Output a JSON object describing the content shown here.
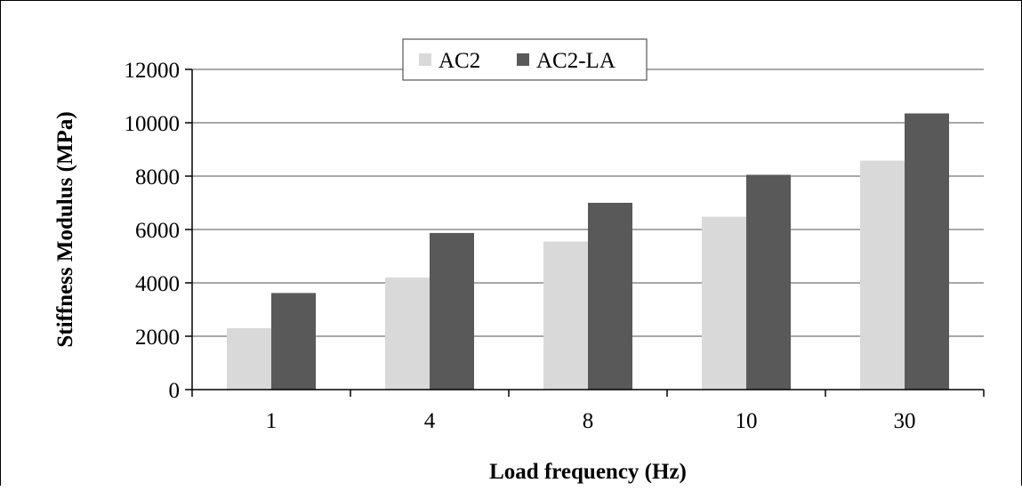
{
  "chart_data": {
    "type": "bar",
    "title": "",
    "xlabel": "Load frequency (Hz)",
    "ylabel": "Stiffness Modulus (MPa)",
    "categories": [
      "1",
      "4",
      "8",
      "10",
      "30"
    ],
    "ylim": [
      0,
      12000
    ],
    "yticks": [
      "0",
      "2000",
      "4000",
      "6000",
      "8000",
      "10000",
      "12000"
    ],
    "grid": true,
    "legend_position": "top-center",
    "series": [
      {
        "name": "AC2",
        "values": [
          2300,
          4200,
          5550,
          6480,
          8580
        ],
        "color": "#d9d9d9"
      },
      {
        "name": "AC2-LA",
        "values": [
          3620,
          5870,
          7000,
          8050,
          10350
        ],
        "color": "#595959"
      }
    ]
  }
}
